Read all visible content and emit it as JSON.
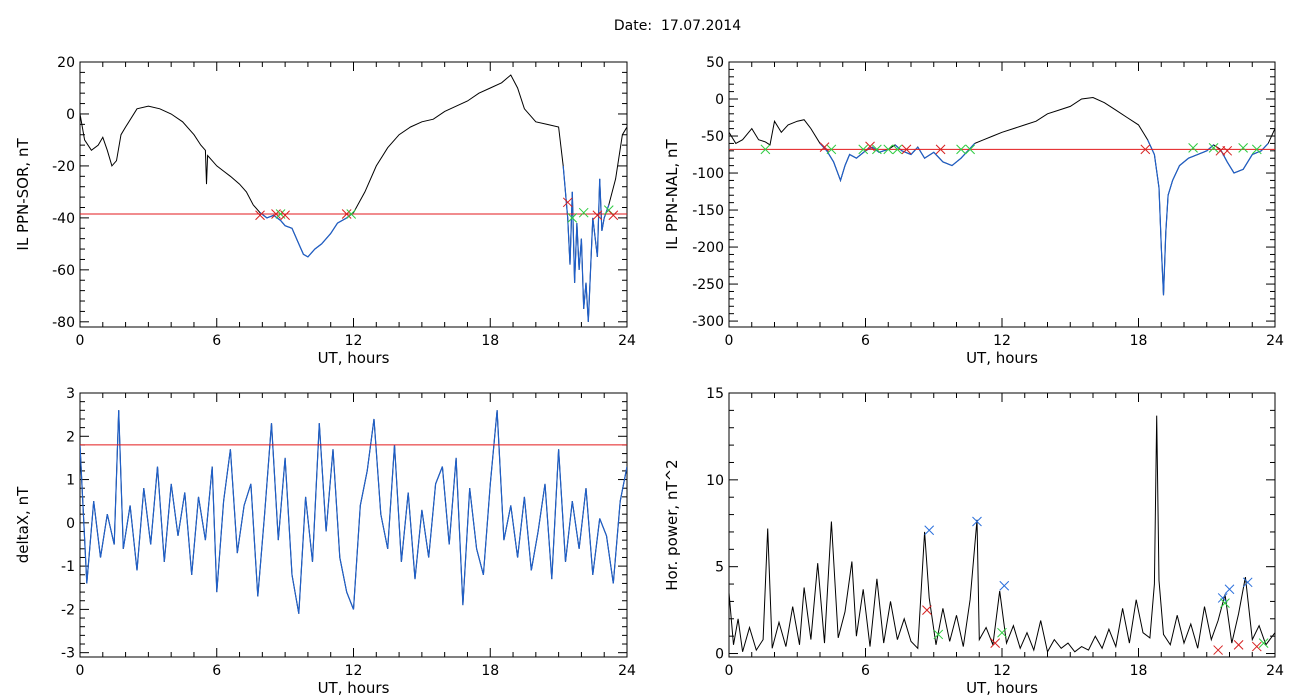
{
  "title": "Date:  17.07.2014",
  "colors": {
    "trace": "#000000",
    "below_threshold": "#1f5fc8",
    "threshold": "#e31a1c",
    "marker_red": "#d62020",
    "marker_green": "#2ecc40",
    "marker_blue": "#2a6fdb"
  },
  "chart_data": [
    {
      "type": "line",
      "panel": "top-left",
      "xlabel": "UT, hours",
      "ylabel": "IL PPN-SOR, nT",
      "xlim": [
        0,
        24
      ],
      "ylim": [
        -82,
        20
      ],
      "xticks": [
        0,
        6,
        12,
        18,
        24
      ],
      "yticks": [
        20,
        0,
        -20,
        -40,
        -60,
        -80
      ],
      "threshold": -38.5,
      "x": [
        0,
        0.2,
        0.5,
        0.8,
        1.0,
        1.2,
        1.4,
        1.6,
        1.8,
        2.0,
        2.5,
        3.0,
        3.5,
        4.0,
        4.5,
        5.0,
        5.3,
        5.5,
        5.55,
        5.6,
        5.8,
        6.0,
        6.3,
        6.6,
        7.0,
        7.3,
        7.6,
        7.9,
        8.2,
        8.5,
        8.8,
        9.0,
        9.3,
        9.6,
        9.8,
        10.0,
        10.3,
        10.6,
        11.0,
        11.3,
        11.7,
        12.0,
        12.5,
        13.0,
        13.5,
        14.0,
        14.5,
        15.0,
        15.5,
        16.0,
        16.5,
        17.0,
        17.5,
        18.0,
        18.5,
        18.9,
        19.2,
        19.5,
        20.0,
        20.5,
        21.0,
        21.2,
        21.4,
        21.5,
        21.6,
        21.7,
        21.8,
        21.9,
        22.0,
        22.1,
        22.2,
        22.3,
        22.5,
        22.7,
        22.8,
        22.9,
        23.0,
        23.2,
        23.5,
        23.8,
        24.0
      ],
      "y": [
        0,
        -10,
        -14,
        -12,
        -9,
        -14,
        -20,
        -18,
        -8,
        -5,
        2,
        3,
        2,
        0,
        -3,
        -8,
        -12,
        -14,
        -27,
        -16,
        -18,
        -20,
        -22,
        -24,
        -27,
        -30,
        -35,
        -38,
        -40,
        -39,
        -41,
        -43,
        -44,
        -50,
        -54,
        -55,
        -52,
        -50,
        -46,
        -42,
        -40,
        -38,
        -30,
        -20,
        -13,
        -8,
        -5,
        -3,
        -2,
        1,
        3,
        5,
        8,
        10,
        12,
        15,
        10,
        2,
        -3,
        -4,
        -5,
        -20,
        -40,
        -58,
        -30,
        -65,
        -42,
        -60,
        -48,
        -75,
        -65,
        -80,
        -40,
        -55,
        -25,
        -45,
        -40,
        -35,
        -25,
        -8,
        -5
      ],
      "markers": [
        {
          "x": 7.9,
          "y": -39,
          "color": "red"
        },
        {
          "x": 8.6,
          "y": -38.5,
          "color": "red"
        },
        {
          "x": 8.8,
          "y": -38.5,
          "color": "green"
        },
        {
          "x": 9.0,
          "y": -39,
          "color": "red"
        },
        {
          "x": 11.7,
          "y": -38.5,
          "color": "red"
        },
        {
          "x": 11.9,
          "y": -38.5,
          "color": "green"
        },
        {
          "x": 21.4,
          "y": -34,
          "color": "red"
        },
        {
          "x": 21.6,
          "y": -40,
          "color": "green"
        },
        {
          "x": 22.1,
          "y": -38,
          "color": "green"
        },
        {
          "x": 22.7,
          "y": -39,
          "color": "red"
        },
        {
          "x": 23.2,
          "y": -37,
          "color": "green"
        },
        {
          "x": 23.4,
          "y": -39,
          "color": "red"
        }
      ]
    },
    {
      "type": "line",
      "panel": "top-right",
      "xlabel": "UT, hours",
      "ylabel": "IL PPN-NAL, nT",
      "xlim": [
        0,
        24
      ],
      "ylim": [
        -308,
        50
      ],
      "xticks": [
        0,
        6,
        12,
        18,
        24
      ],
      "yticks": [
        50,
        0,
        -50,
        -100,
        -150,
        -200,
        -250,
        -300
      ],
      "threshold": -68,
      "x": [
        0,
        0.3,
        0.6,
        1.0,
        1.3,
        1.6,
        1.8,
        2.0,
        2.3,
        2.6,
        3.0,
        3.3,
        3.6,
        4.0,
        4.3,
        4.6,
        4.9,
        5.1,
        5.3,
        5.6,
        6.0,
        6.3,
        6.6,
        7.0,
        7.3,
        7.6,
        8.0,
        8.3,
        8.6,
        9.0,
        9.4,
        9.8,
        10.2,
        10.5,
        10.8,
        11.2,
        11.6,
        12.0,
        12.5,
        13.0,
        13.5,
        14.0,
        14.5,
        15.0,
        15.5,
        16.0,
        16.5,
        17.0,
        17.5,
        18.0,
        18.4,
        18.7,
        18.9,
        19.0,
        19.1,
        19.2,
        19.3,
        19.5,
        19.8,
        20.2,
        20.6,
        21.0,
        21.3,
        21.6,
        21.9,
        22.2,
        22.6,
        23.0,
        23.4,
        23.7,
        24.0
      ],
      "y": [
        -45,
        -60,
        -55,
        -40,
        -55,
        -58,
        -62,
        -30,
        -45,
        -35,
        -30,
        -28,
        -40,
        -60,
        -70,
        -85,
        -110,
        -90,
        -75,
        -80,
        -70,
        -65,
        -72,
        -68,
        -62,
        -70,
        -75,
        -65,
        -80,
        -72,
        -85,
        -90,
        -80,
        -70,
        -60,
        -55,
        -50,
        -45,
        -40,
        -35,
        -30,
        -20,
        -15,
        -10,
        0,
        2,
        -5,
        -15,
        -25,
        -35,
        -55,
        -75,
        -120,
        -200,
        -265,
        -180,
        -130,
        -110,
        -90,
        -80,
        -75,
        -70,
        -62,
        -68,
        -85,
        -100,
        -95,
        -75,
        -70,
        -60,
        -40
      ],
      "markers": [
        {
          "x": 1.6,
          "y": -68,
          "color": "green"
        },
        {
          "x": 4.2,
          "y": -65,
          "color": "red"
        },
        {
          "x": 4.5,
          "y": -68,
          "color": "green"
        },
        {
          "x": 5.9,
          "y": -68,
          "color": "green"
        },
        {
          "x": 6.2,
          "y": -64,
          "color": "red"
        },
        {
          "x": 6.5,
          "y": -68,
          "color": "green"
        },
        {
          "x": 7.0,
          "y": -68,
          "color": "green"
        },
        {
          "x": 7.4,
          "y": -68,
          "color": "green"
        },
        {
          "x": 7.8,
          "y": -68,
          "color": "red"
        },
        {
          "x": 9.3,
          "y": -68,
          "color": "red"
        },
        {
          "x": 10.2,
          "y": -68,
          "color": "green"
        },
        {
          "x": 10.6,
          "y": -68,
          "color": "green"
        },
        {
          "x": 18.3,
          "y": -68,
          "color": "red"
        },
        {
          "x": 20.4,
          "y": -66,
          "color": "green"
        },
        {
          "x": 21.3,
          "y": -66,
          "color": "green"
        },
        {
          "x": 21.6,
          "y": -70,
          "color": "red"
        },
        {
          "x": 21.9,
          "y": -70,
          "color": "red"
        },
        {
          "x": 22.6,
          "y": -66,
          "color": "green"
        },
        {
          "x": 23.2,
          "y": -68,
          "color": "green"
        }
      ]
    },
    {
      "type": "line",
      "panel": "bottom-left",
      "xlabel": "UT, hours",
      "ylabel": "deltaX, nT",
      "xlim": [
        0,
        24
      ],
      "ylim": [
        -3.1,
        3
      ],
      "xticks": [
        0,
        6,
        12,
        18,
        24
      ],
      "yticks": [
        3,
        2,
        1,
        0,
        -1,
        -2,
        -3
      ],
      "threshold": 1.8,
      "x": [
        0,
        0.3,
        0.6,
        0.9,
        1.2,
        1.5,
        1.7,
        1.9,
        2.2,
        2.5,
        2.8,
        3.1,
        3.4,
        3.7,
        4.0,
        4.3,
        4.6,
        4.9,
        5.2,
        5.5,
        5.8,
        6.0,
        6.3,
        6.6,
        6.9,
        7.2,
        7.5,
        7.8,
        8.1,
        8.4,
        8.7,
        9.0,
        9.3,
        9.6,
        9.9,
        10.2,
        10.5,
        10.8,
        11.1,
        11.4,
        11.7,
        12.0,
        12.3,
        12.6,
        12.9,
        13.2,
        13.5,
        13.8,
        14.1,
        14.4,
        14.7,
        15.0,
        15.3,
        15.6,
        15.9,
        16.2,
        16.5,
        16.8,
        17.1,
        17.4,
        17.7,
        18.0,
        18.3,
        18.6,
        18.9,
        19.2,
        19.5,
        19.8,
        20.1,
        20.4,
        20.7,
        21.0,
        21.3,
        21.6,
        21.9,
        22.2,
        22.5,
        22.8,
        23.1,
        23.4,
        23.7,
        24.0
      ],
      "y": [
        1.8,
        -1.4,
        0.5,
        -0.8,
        0.2,
        -0.5,
        2.6,
        -0.6,
        0.4,
        -1.1,
        0.8,
        -0.5,
        1.3,
        -0.9,
        0.9,
        -0.3,
        0.7,
        -1.2,
        0.6,
        -0.4,
        1.3,
        -1.6,
        0.5,
        1.7,
        -0.7,
        0.4,
        0.9,
        -1.7,
        0.2,
        2.3,
        -0.4,
        1.5,
        -1.2,
        -2.1,
        0.6,
        -0.9,
        2.3,
        -0.2,
        1.7,
        -0.8,
        -1.6,
        -2.0,
        0.4,
        1.2,
        2.4,
        0.2,
        -0.6,
        1.8,
        -0.9,
        0.7,
        -1.3,
        0.3,
        -0.8,
        0.9,
        1.3,
        -0.5,
        1.5,
        -1.9,
        0.8,
        -0.6,
        -1.2,
        0.9,
        2.6,
        -0.4,
        0.4,
        -0.8,
        0.6,
        -1.1,
        -0.2,
        0.9,
        -1.3,
        1.7,
        -0.9,
        0.5,
        -0.6,
        0.8,
        -1.2,
        0.1,
        -0.3,
        -1.4,
        0.5,
        1.3
      ],
      "markers": []
    },
    {
      "type": "line",
      "panel": "bottom-right",
      "xlabel": "UT, hours",
      "ylabel": "Hor. power, nT^2",
      "xlim": [
        0,
        24
      ],
      "ylim": [
        -0.2,
        15
      ],
      "xticks": [
        0,
        6,
        12,
        18,
        24
      ],
      "yticks": [
        15,
        10,
        5,
        0
      ],
      "threshold": null,
      "x": [
        0,
        0.2,
        0.4,
        0.6,
        0.9,
        1.2,
        1.5,
        1.7,
        1.9,
        2.2,
        2.5,
        2.8,
        3.1,
        3.3,
        3.6,
        3.9,
        4.2,
        4.5,
        4.8,
        5.1,
        5.4,
        5.6,
        5.9,
        6.2,
        6.5,
        6.8,
        7.1,
        7.4,
        7.7,
        8.0,
        8.3,
        8.6,
        8.8,
        9.1,
        9.4,
        9.7,
        10.0,
        10.3,
        10.6,
        10.9,
        11.0,
        11.3,
        11.6,
        11.9,
        12.2,
        12.5,
        12.8,
        13.1,
        13.4,
        13.7,
        14.0,
        14.3,
        14.6,
        14.9,
        15.2,
        15.5,
        15.8,
        16.1,
        16.4,
        16.7,
        17.0,
        17.3,
        17.6,
        17.9,
        18.2,
        18.5,
        18.7,
        18.8,
        18.9,
        19.1,
        19.4,
        19.7,
        20.0,
        20.3,
        20.6,
        20.9,
        21.2,
        21.5,
        21.8,
        22.1,
        22.4,
        22.7,
        23.0,
        23.3,
        23.6,
        24.0
      ],
      "y": [
        3.5,
        0.5,
        2.0,
        0.1,
        1.5,
        0.2,
        0.8,
        7.2,
        0.3,
        1.8,
        0.4,
        2.7,
        0.5,
        3.8,
        0.8,
        5.2,
        0.6,
        7.6,
        0.9,
        2.4,
        5.3,
        1.0,
        3.7,
        0.4,
        4.3,
        0.6,
        3.0,
        0.8,
        2.0,
        0.7,
        0.3,
        7.0,
        3.2,
        0.5,
        2.6,
        0.7,
        2.2,
        0.4,
        3.1,
        7.7,
        0.8,
        1.5,
        0.5,
        3.6,
        0.6,
        1.6,
        0.3,
        1.2,
        0.2,
        1.9,
        0.1,
        0.8,
        0.3,
        0.6,
        0.1,
        0.4,
        0.2,
        1.0,
        0.3,
        1.4,
        0.4,
        2.6,
        0.6,
        3.1,
        1.2,
        0.9,
        4.0,
        13.7,
        4.2,
        1.1,
        0.5,
        2.2,
        0.6,
        1.7,
        0.3,
        2.7,
        0.8,
        1.9,
        3.4,
        0.6,
        2.3,
        4.4,
        0.8,
        1.6,
        0.5,
        1.2
      ],
      "markers": [
        {
          "x": 8.8,
          "y": 7.1,
          "color": "blue"
        },
        {
          "x": 8.7,
          "y": 2.5,
          "color": "red"
        },
        {
          "x": 9.2,
          "y": 1.1,
          "color": "green"
        },
        {
          "x": 10.9,
          "y": 7.6,
          "color": "blue"
        },
        {
          "x": 12.1,
          "y": 3.9,
          "color": "blue"
        },
        {
          "x": 11.7,
          "y": 0.6,
          "color": "red"
        },
        {
          "x": 12.0,
          "y": 1.2,
          "color": "green"
        },
        {
          "x": 21.5,
          "y": 0.2,
          "color": "red"
        },
        {
          "x": 21.7,
          "y": 3.2,
          "color": "blue"
        },
        {
          "x": 21.8,
          "y": 2.9,
          "color": "green"
        },
        {
          "x": 22.0,
          "y": 3.7,
          "color": "blue"
        },
        {
          "x": 22.4,
          "y": 0.5,
          "color": "red"
        },
        {
          "x": 22.8,
          "y": 4.1,
          "color": "blue"
        },
        {
          "x": 23.2,
          "y": 0.4,
          "color": "red"
        },
        {
          "x": 23.5,
          "y": 0.6,
          "color": "green"
        }
      ]
    }
  ]
}
